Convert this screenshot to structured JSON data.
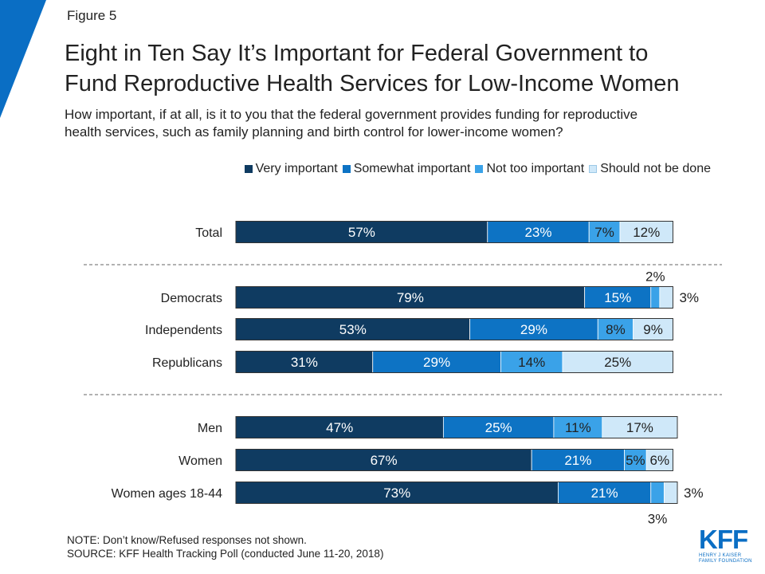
{
  "figure_label": "Figure 5",
  "title_line1": "Eight in Ten Say It’s Important for Federal Government to",
  "title_line2": "Fund Reproductive Health Services for Low-Income Women",
  "subtitle_line1": "How important, if at all, is it to you that the federal government provides funding for reproductive",
  "subtitle_line2": "health services, such as family planning and birth control for lower-income women?",
  "note": "NOTE: Don’t know/Refused responses not shown.",
  "source": "SOURCE: KFF Health Tracking Poll (conducted June 11-20, 2018)",
  "logo": {
    "mark": "KFF",
    "line1": "HENRY J KAISER",
    "line2": "FAMILY FOUNDATION",
    "color": "#0a6ec4"
  },
  "colors": {
    "accent": "#0a6ec4",
    "very": "#0f3b61",
    "somewhat": "#0d73c4",
    "not_too": "#3aa2e8",
    "should_not": "#cfe8f9",
    "divider": "#666666"
  },
  "chart_data": {
    "type": "bar",
    "orientation": "horizontal-stacked",
    "unit": "%",
    "xlim": [
      0,
      100
    ],
    "grid": false,
    "legend_position": "top-right",
    "series": [
      {
        "name": "Very important",
        "color": "#0f3b61"
      },
      {
        "name": "Somewhat important",
        "color": "#0d73c4"
      },
      {
        "name": "Not too important",
        "color": "#3aa2e8"
      },
      {
        "name": "Should not be done",
        "color": "#cfe8f9"
      }
    ],
    "groups": [
      {
        "rows": [
          {
            "category": "Total",
            "values": [
              57,
              23,
              7,
              12
            ]
          }
        ]
      },
      {
        "rows": [
          {
            "category": "Democrats",
            "values": [
              79,
              15,
              2,
              3
            ]
          },
          {
            "category": "Independents",
            "values": [
              53,
              29,
              8,
              9
            ]
          },
          {
            "category": "Republicans",
            "values": [
              31,
              29,
              14,
              25
            ]
          }
        ]
      },
      {
        "rows": [
          {
            "category": "Men",
            "values": [
              47,
              25,
              11,
              17
            ]
          },
          {
            "category": "Women",
            "values": [
              67,
              21,
              5,
              6
            ]
          },
          {
            "category": "Women ages 18-44",
            "values": [
              73,
              21,
              3,
              3
            ]
          }
        ]
      }
    ]
  }
}
